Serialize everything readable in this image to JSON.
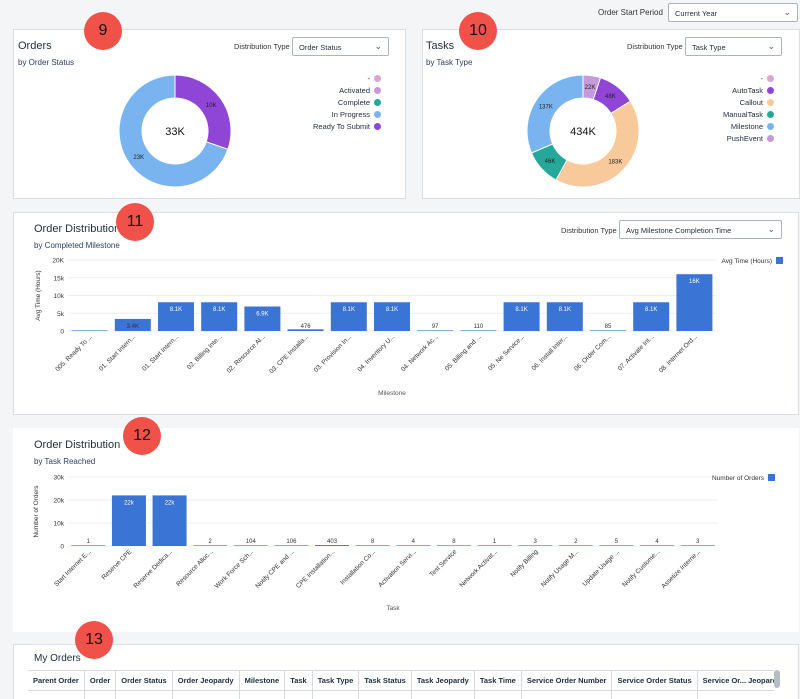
{
  "header": {
    "period_label": "Order Start Period",
    "period_value": "Current Year"
  },
  "badges": [
    "9",
    "10",
    "11",
    "12",
    "13"
  ],
  "orders": {
    "title": "Orders",
    "subtitle": "by Order Status",
    "dist_label": "Distribution Type",
    "dist_value": "Order Status",
    "center": "33K",
    "legend": [
      {
        "label": "-",
        "color": "#d9a6cf"
      },
      {
        "label": "Activated",
        "color": "#c59ad8"
      },
      {
        "label": "Complete",
        "color": "#25a89a"
      },
      {
        "label": "In Progress",
        "color": "#7ab4f0"
      },
      {
        "label": "Ready To Submit",
        "color": "#8f45d6"
      }
    ]
  },
  "tasks": {
    "title": "Tasks",
    "subtitle": "by Task Type",
    "dist_label": "Distribution Type",
    "dist_value": "Task Type",
    "center": "434K",
    "legend": [
      {
        "label": "-",
        "color": "#d9a6cf"
      },
      {
        "label": "AutoTask",
        "color": "#8f45d6"
      },
      {
        "label": "Callout",
        "color": "#f8c99a"
      },
      {
        "label": "ManualTask",
        "color": "#25a89a"
      },
      {
        "label": "Milestone",
        "color": "#7ab4f0"
      },
      {
        "label": "PushEvent",
        "color": "#c59ad8"
      }
    ]
  },
  "milestone_panel": {
    "title": "Order Distribution",
    "subtitle": "by Completed Milestone",
    "dist_label": "Distribution Type",
    "dist_value": "Avg Milestone Completion Time"
  },
  "task_panel": {
    "title": "Order Distribution",
    "subtitle": "by Task Reached"
  },
  "my_orders": {
    "title": "My Orders",
    "columns": [
      "Parent Order",
      "Order",
      "Order Status",
      "Order Jeopardy",
      "Milestone",
      "Task",
      "Task Type",
      "Task Status",
      "Task Jeopardy",
      "Task Time",
      "Service Order Number",
      "Service Order Status",
      "Service Or... Jeopardy"
    ]
  },
  "chart_data": [
    {
      "type": "pie",
      "title": "Orders",
      "subtitle": "by Order Status",
      "categories": [
        "Ready To Submit",
        "In Progress"
      ],
      "values": [
        10,
        23
      ],
      "data_labels": [
        "10K",
        "23K"
      ],
      "colors": [
        "#8f45d6",
        "#7ab4f0"
      ],
      "center_label": "33K"
    },
    {
      "type": "pie",
      "title": "Tasks",
      "subtitle": "by Task Type",
      "categories": [
        "PushEvent",
        "AutoTask",
        "Callout",
        "ManualTask",
        "Milestone"
      ],
      "values": [
        22,
        48,
        183,
        46,
        137
      ],
      "data_labels": [
        "22K",
        "48K",
        "183K",
        "46K",
        "137K"
      ],
      "colors": [
        "#c59ad8",
        "#8f45d6",
        "#f8c99a",
        "#25a89a",
        "#7ab4f0"
      ],
      "center_label": "434K"
    },
    {
      "type": "bar",
      "title": "Order Distribution",
      "subtitle": "by Completed Milestone",
      "xlabel": "Milestone",
      "ylabel": "Avg Time (Hours)",
      "ylim": [
        0,
        20000
      ],
      "yticks": [
        "0",
        "5k",
        "10k",
        "15k",
        "20K"
      ],
      "series": [
        {
          "name": "Avg Time (Hours)",
          "color": "#3a74d4",
          "values": [
            0,
            3400,
            8100,
            8100,
            6900,
            476,
            8100,
            8100,
            97,
            110,
            8100,
            8100,
            85,
            8100,
            16000
          ]
        }
      ],
      "data_labels": [
        "",
        "3.4K",
        "8.1K",
        "8.1K",
        "6.9K",
        "476",
        "8.1K",
        "8.1K",
        "97",
        "110",
        "8.1K",
        "8.1K",
        "85",
        "8.1K",
        "16K"
      ],
      "categories": [
        "005. Ready To ...",
        "01. Start Intern...",
        "01. Start Intern...",
        "02. Billing Inte...",
        "02. Resource Al...",
        "03. CPE Installa...",
        "03. Provision In...",
        "04. Inventory U...",
        "04. Network Ac...",
        "05. Billing and ...",
        "05. Ne Service...",
        "06. Install Inter...",
        "06. Order Com...",
        "07. Activate Int...",
        "08. Internet Ord..."
      ],
      "legend": "top-right"
    },
    {
      "type": "bar",
      "title": "Order Distribution",
      "subtitle": "by Task Reached",
      "xlabel": "Task",
      "ylabel": "Number of Orders",
      "ylim": [
        0,
        30000
      ],
      "yticks": [
        "0",
        "10k",
        "20k",
        "30k"
      ],
      "series": [
        {
          "name": "Number of Orders",
          "color": "#3a74d4",
          "values": [
            1,
            22000,
            22000,
            2,
            104,
            106,
            403,
            8,
            4,
            8,
            1,
            3,
            2,
            5,
            4,
            3
          ]
        }
      ],
      "data_labels": [
        "1",
        "22k",
        "22k",
        "2",
        "104",
        "106",
        "403",
        "8",
        "4",
        "8",
        "1",
        "3",
        "2",
        "5",
        "4",
        "3"
      ],
      "categories": [
        "Start Internet E...",
        "Reserve CPE",
        "Reserve Dedica...",
        "Resource Alloc...",
        "Work Force Sch...",
        "Notify CPE and ...",
        "CPE Installation...",
        "Installation Co...",
        "Activation Servi...",
        "Test Service",
        "Network Activat...",
        "Notify Billing",
        "Notify Usage M...",
        "Update Usage ...",
        "Notify Custome...",
        "Assetize Interne..."
      ],
      "legend": "top-right"
    }
  ]
}
